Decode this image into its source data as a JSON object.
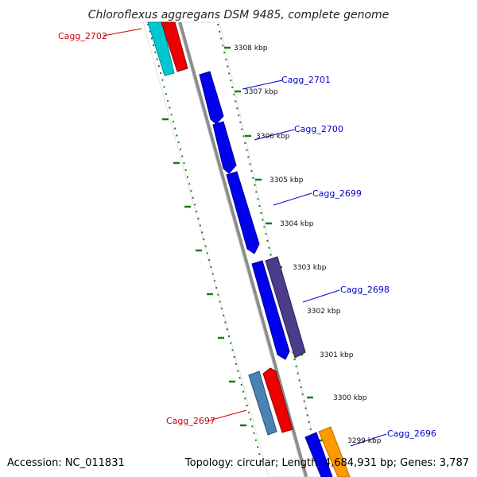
{
  "title": "Chloroflexus aggregans DSM 9485, complete genome",
  "footer": {
    "accession": "Accession: NC_011831",
    "summary": "Topology: circular; Length: 4,684,931 bp; Genes: 3,787"
  },
  "ticks": [
    "3308 kbp",
    "3307 kbp",
    "3306 kbp",
    "3305 kbp",
    "3304 kbp",
    "3303 kbp",
    "3302 kbp",
    "3301 kbp",
    "3300 kbp",
    "3299 kbp"
  ],
  "gene_labels": {
    "cagg_2702": "Cagg_2702",
    "cagg_2701": "Cagg_2701",
    "cagg_2700": "Cagg_2700",
    "cagg_2699": "Cagg_2699",
    "cagg_2698": "Cagg_2698",
    "cagg_2697": "Cagg_2697",
    "cagg_2696": "Cagg_2696"
  },
  "colors": {
    "backbone": "#8c8c8c",
    "tick": "#1a7a1a",
    "forward_label": "#cc0000",
    "reverse_label": "#0000cc",
    "blue_gene": "#0000ee",
    "cyan_gene": "#00c8d0",
    "red_gene": "#ee0000",
    "purple_gene": "#4b3c8c",
    "steel_gene": "#4a82b4",
    "orange_gene": "#ff9900"
  }
}
